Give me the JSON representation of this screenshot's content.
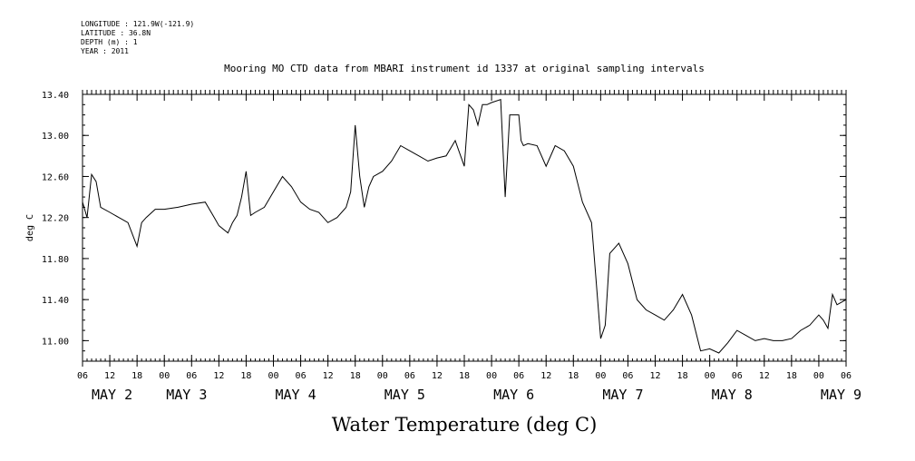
{
  "header": {
    "longitude": "LONGITUDE : 121.9W(-121.9)",
    "latitude": "LATITUDE : 36.8N",
    "depth": "DEPTH (m) : 1",
    "year": "YEAR : 2011"
  },
  "chart_data": {
    "type": "line",
    "title": "Mooring MO CTD data from MBARI instrument id 1337 at original sampling intervals",
    "xlabel": "Water Temperature (deg C)",
    "ylabel": "deg C",
    "ylim": [
      10.8,
      13.4
    ],
    "yticks": [
      "13.40",
      "13.00",
      "12.60",
      "12.20",
      "11.80",
      "11.40",
      "11.00"
    ],
    "xlim": [
      "2011-05-02T06:00",
      "2011-05-09T06:00"
    ],
    "xtick_hours": [
      "06",
      "12",
      "18",
      "00",
      "06",
      "12",
      "18",
      "00",
      "06",
      "12",
      "18",
      "00",
      "06",
      "12",
      "18",
      "00",
      "06",
      "12",
      "18",
      "00",
      "06",
      "12",
      "18",
      "00",
      "06",
      "12",
      "18",
      "00",
      "06"
    ],
    "date_labels": [
      "MAY 2",
      "MAY 3",
      "MAY 4",
      "MAY 5",
      "MAY 6",
      "MAY 7",
      "MAY 8",
      "MAY 9"
    ],
    "grid": false,
    "series": [
      {
        "color": "#000000",
        "x": [
          "2011-05-02T06:00",
          "2011-05-02T07:00",
          "2011-05-02T08:00",
          "2011-05-02T09:00",
          "2011-05-02T10:00",
          "2011-05-02T12:00",
          "2011-05-02T14:00",
          "2011-05-02T16:00",
          "2011-05-02T18:00",
          "2011-05-02T19:00",
          "2011-05-02T20:00",
          "2011-05-02T22:00",
          "2011-05-03T00:00",
          "2011-05-03T03:00",
          "2011-05-03T06:00",
          "2011-05-03T09:00",
          "2011-05-03T11:00",
          "2011-05-03T12:00",
          "2011-05-03T14:00",
          "2011-05-03T15:00",
          "2011-05-03T16:00",
          "2011-05-03T17:00",
          "2011-05-03T18:00",
          "2011-05-03T19:00",
          "2011-05-03T20:00",
          "2011-05-03T22:00",
          "2011-05-04T00:00",
          "2011-05-04T02:00",
          "2011-05-04T04:00",
          "2011-05-04T06:00",
          "2011-05-04T08:00",
          "2011-05-04T10:00",
          "2011-05-04T12:00",
          "2011-05-04T14:00",
          "2011-05-04T16:00",
          "2011-05-04T17:00",
          "2011-05-04T18:00",
          "2011-05-04T19:00",
          "2011-05-04T20:00",
          "2011-05-04T21:00",
          "2011-05-04T22:00",
          "2011-05-05T00:00",
          "2011-05-05T02:00",
          "2011-05-05T04:00",
          "2011-05-05T06:00",
          "2011-05-05T08:00",
          "2011-05-05T10:00",
          "2011-05-05T12:00",
          "2011-05-05T14:00",
          "2011-05-05T16:00",
          "2011-05-05T18:00",
          "2011-05-05T19:00",
          "2011-05-05T20:00",
          "2011-05-05T21:00",
          "2011-05-05T22:00",
          "2011-05-05T23:00",
          "2011-05-06T00:00",
          "2011-05-06T02:00",
          "2011-05-06T03:00",
          "2011-05-06T04:00",
          "2011-05-06T06:00",
          "2011-05-06T06:30",
          "2011-05-06T07:00",
          "2011-05-06T08:00",
          "2011-05-06T10:00",
          "2011-05-06T12:00",
          "2011-05-06T14:00",
          "2011-05-06T16:00",
          "2011-05-06T18:00",
          "2011-05-06T20:00",
          "2011-05-06T22:00",
          "2011-05-07T00:00",
          "2011-05-07T01:00",
          "2011-05-07T02:00",
          "2011-05-07T04:00",
          "2011-05-07T06:00",
          "2011-05-07T08:00",
          "2011-05-07T10:00",
          "2011-05-07T12:00",
          "2011-05-07T14:00",
          "2011-05-07T16:00",
          "2011-05-07T18:00",
          "2011-05-07T20:00",
          "2011-05-07T22:00",
          "2011-05-08T00:00",
          "2011-05-08T02:00",
          "2011-05-08T04:00",
          "2011-05-08T06:00",
          "2011-05-08T08:00",
          "2011-05-08T10:00",
          "2011-05-08T12:00",
          "2011-05-08T14:00",
          "2011-05-08T16:00",
          "2011-05-08T18:00",
          "2011-05-08T20:00",
          "2011-05-08T22:00",
          "2011-05-09T00:00",
          "2011-05-09T01:00",
          "2011-05-09T02:00",
          "2011-05-09T03:00",
          "2011-05-09T04:00",
          "2011-05-09T06:00"
        ],
        "y": [
          12.35,
          12.2,
          12.62,
          12.55,
          12.3,
          12.25,
          12.2,
          12.15,
          11.92,
          12.15,
          12.2,
          12.28,
          12.28,
          12.3,
          12.33,
          12.35,
          12.2,
          12.12,
          12.05,
          12.15,
          12.22,
          12.4,
          12.65,
          12.22,
          12.25,
          12.3,
          12.45,
          12.6,
          12.5,
          12.35,
          12.28,
          12.25,
          12.15,
          12.2,
          12.3,
          12.45,
          13.1,
          12.6,
          12.3,
          12.5,
          12.6,
          12.65,
          12.75,
          12.9,
          12.85,
          12.8,
          12.75,
          12.78,
          12.8,
          12.95,
          12.7,
          13.3,
          13.25,
          13.1,
          13.3,
          13.3,
          13.32,
          13.35,
          12.4,
          13.2,
          13.2,
          12.95,
          12.9,
          12.92,
          12.9,
          12.7,
          12.9,
          12.85,
          12.7,
          12.35,
          12.15,
          11.02,
          11.15,
          11.85,
          11.95,
          11.75,
          11.4,
          11.3,
          11.25,
          11.2,
          11.3,
          11.45,
          11.25,
          10.9,
          10.92,
          10.88,
          10.98,
          11.1,
          11.05,
          11.0,
          11.02,
          11.0,
          11.0,
          11.02,
          11.1,
          11.15,
          11.25,
          11.2,
          11.12,
          11.45,
          11.35,
          11.4
        ]
      }
    ]
  }
}
